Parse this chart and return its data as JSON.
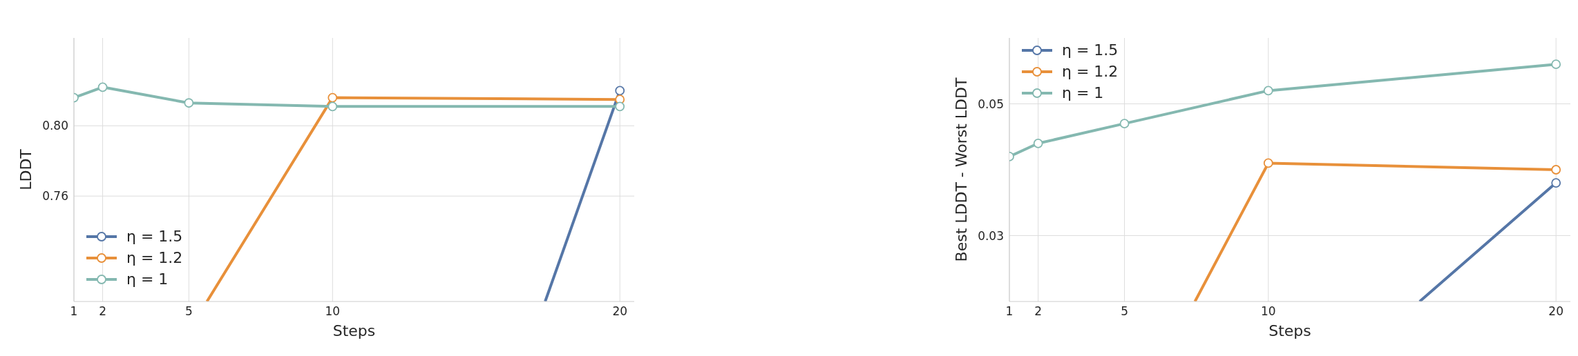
{
  "chart_data": [
    {
      "type": "line",
      "xlabel": "Steps",
      "ylabel": "LDDT",
      "xlim": [
        1,
        20.5
      ],
      "xticks": [
        1,
        2,
        5,
        10,
        20
      ],
      "ylim": [
        0.7,
        0.85
      ],
      "yticks": [
        0.76,
        {
          "value": 0.8,
          "label": "0.80"
        }
      ],
      "grid": true,
      "legend": "bottom left",
      "marker": "circle",
      "line_style": "solid",
      "series": [
        {
          "name": "η = 1.5",
          "color": "#5576a7",
          "x": [
            17.4,
            20
          ],
          "values": [
            0.7,
            0.82
          ]
        },
        {
          "name": "η = 1.2",
          "color": "#e8903a",
          "x": [
            5.63,
            10,
            20
          ],
          "values": [
            0.7,
            0.816,
            0.815
          ]
        },
        {
          "name": "η = 1",
          "color": "#84b8b0",
          "x": [
            1,
            2,
            5,
            10,
            20
          ],
          "values": [
            0.816,
            0.822,
            0.813,
            0.811,
            0.811
          ]
        }
      ]
    },
    {
      "type": "line",
      "xlabel": "Steps",
      "ylabel": "Best LDDT - Worst LDDT",
      "xlim": [
        1,
        20.5
      ],
      "xticks": [
        1,
        2,
        5,
        10,
        20
      ],
      "ylim": [
        0.02,
        0.06
      ],
      "yticks": [
        0.03,
        0.05
      ],
      "grid": true,
      "legend": "top left",
      "marker": "circle",
      "line_style": "solid",
      "series": [
        {
          "name": "η = 1.5",
          "color": "#5576a7",
          "x": [
            15.26,
            20
          ],
          "values": [
            0.02,
            0.038
          ]
        },
        {
          "name": "η = 1.2",
          "color": "#e8903a",
          "x": [
            7.45,
            10,
            20
          ],
          "values": [
            0.02,
            0.041,
            0.04
          ]
        },
        {
          "name": "η = 1",
          "color": "#84b8b0",
          "x": [
            1,
            2,
            5,
            10,
            20
          ],
          "values": [
            0.042,
            0.044,
            0.047,
            0.052,
            0.056
          ]
        }
      ]
    }
  ]
}
